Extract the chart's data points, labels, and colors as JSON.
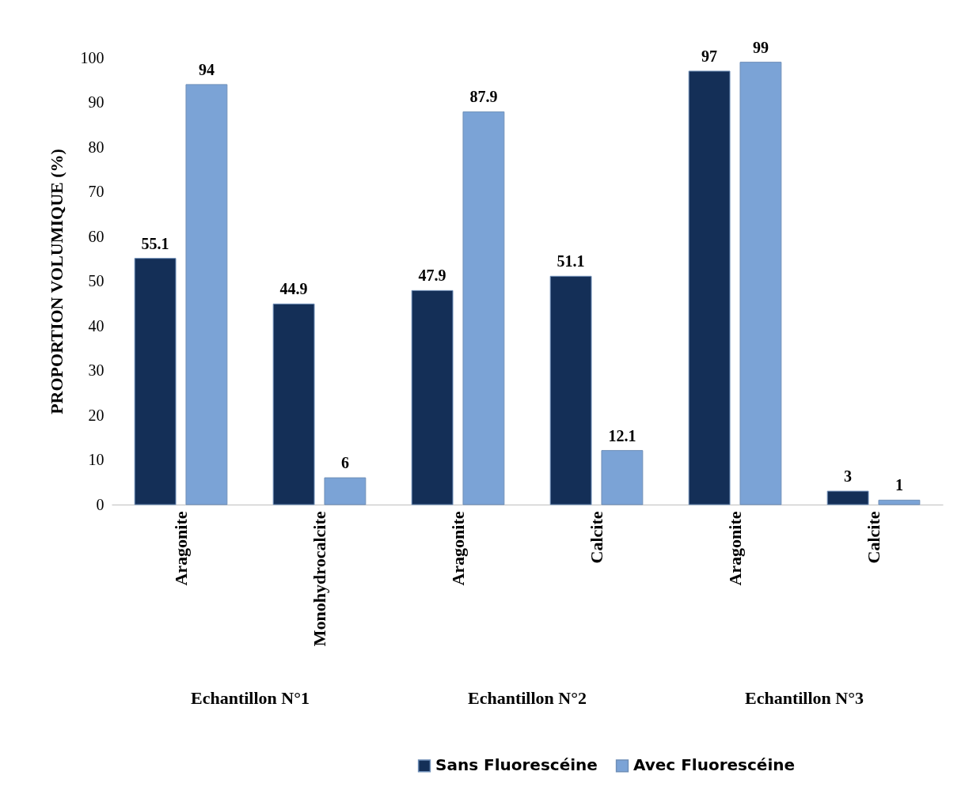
{
  "chart_data": {
    "type": "bar",
    "ylabel": "PROPORTION VOLUMIQUE (%)",
    "categories": [
      "Aragonite",
      "Monohydrocalcite",
      "Aragonite",
      "Calcite",
      "Aragonite",
      "Calcite"
    ],
    "series": [
      {
        "name": "Sans Fluorescéine",
        "color": "#142f57",
        "values": [
          55.1,
          44.9,
          47.9,
          51.1,
          97,
          3
        ]
      },
      {
        "name": "Avec Fluorescéine",
        "color": "#7ba3d6",
        "values": [
          94,
          6,
          87.9,
          12.1,
          99,
          1
        ]
      }
    ],
    "annotations": [
      "Echantillon N°1",
      "Echantillon N°2",
      "Echantillon N°3"
    ],
    "ylim": [
      0,
      100
    ],
    "yticks": [
      0,
      10,
      20,
      30,
      40,
      50,
      60,
      70,
      80,
      90,
      100
    ],
    "data_labels": true,
    "grid": false,
    "legend": "bottom"
  }
}
